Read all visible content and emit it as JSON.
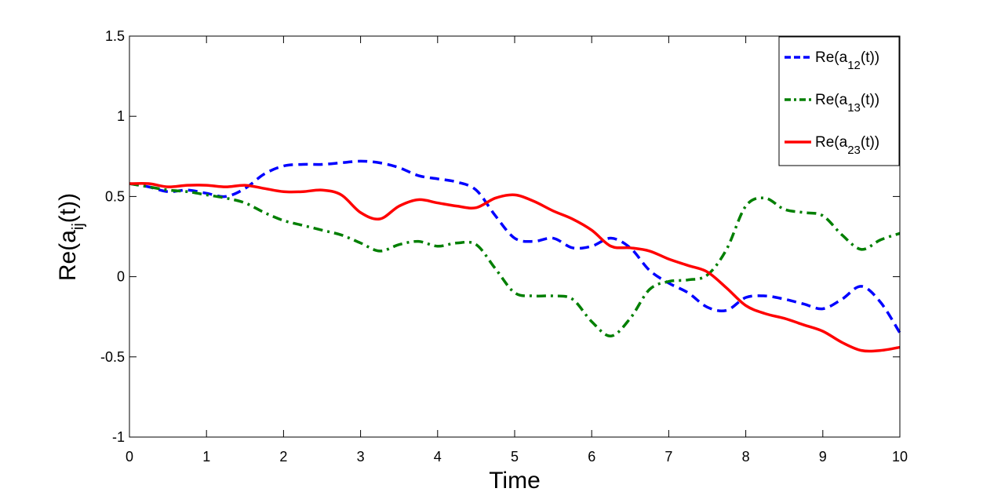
{
  "chart_data": {
    "type": "line",
    "xlabel": "Time",
    "ylabel": {
      "base": "Re(a",
      "sub": "ij",
      "tail": "(t))"
    },
    "xlim": [
      0,
      10
    ],
    "ylim": [
      -1,
      1.5
    ],
    "x_ticks": [
      "0",
      "1",
      "2",
      "3",
      "4",
      "5",
      "6",
      "7",
      "8",
      "9",
      "10"
    ],
    "y_ticks": [
      "-1",
      "-0.5",
      "0",
      "0.5",
      "1",
      "1.5"
    ],
    "grid": false,
    "legend_position": "top-right",
    "series": [
      {
        "name": "Re(a12(t))",
        "legend_base": "Re(a",
        "legend_sub": "12",
        "legend_tail": "(t))",
        "color": "#0000ff",
        "style": "dashed",
        "x": [
          0,
          0.25,
          0.5,
          0.75,
          1.0,
          1.25,
          1.5,
          1.75,
          2.0,
          2.25,
          2.5,
          2.75,
          3.0,
          3.25,
          3.5,
          3.75,
          4.0,
          4.25,
          4.5,
          4.75,
          5.0,
          5.25,
          5.5,
          5.75,
          6.0,
          6.25,
          6.5,
          6.75,
          7.0,
          7.25,
          7.5,
          7.75,
          8.0,
          8.25,
          8.5,
          8.75,
          9.0,
          9.25,
          9.5,
          9.75,
          10.0
        ],
        "y": [
          0.58,
          0.56,
          0.53,
          0.54,
          0.52,
          0.5,
          0.55,
          0.64,
          0.69,
          0.7,
          0.7,
          0.71,
          0.72,
          0.71,
          0.68,
          0.63,
          0.61,
          0.59,
          0.54,
          0.38,
          0.24,
          0.22,
          0.24,
          0.18,
          0.19,
          0.24,
          0.18,
          0.04,
          -0.04,
          -0.1,
          -0.19,
          -0.21,
          -0.13,
          -0.12,
          -0.14,
          -0.17,
          -0.2,
          -0.14,
          -0.06,
          -0.16,
          -0.35
        ]
      },
      {
        "name": "Re(a13(t))",
        "legend_base": "Re(a",
        "legend_sub": "13",
        "legend_tail": "(t))",
        "color": "#007f00",
        "style": "dashdot",
        "x": [
          0,
          0.25,
          0.5,
          0.75,
          1.0,
          1.25,
          1.5,
          1.75,
          2.0,
          2.25,
          2.5,
          2.75,
          3.0,
          3.25,
          3.5,
          3.75,
          4.0,
          4.25,
          4.5,
          4.75,
          5.0,
          5.25,
          5.5,
          5.75,
          6.0,
          6.25,
          6.5,
          6.75,
          7.0,
          7.25,
          7.5,
          7.75,
          8.0,
          8.25,
          8.5,
          8.75,
          9.0,
          9.25,
          9.5,
          9.75,
          10.0
        ],
        "y": [
          0.58,
          0.56,
          0.54,
          0.53,
          0.51,
          0.49,
          0.46,
          0.4,
          0.35,
          0.32,
          0.29,
          0.26,
          0.21,
          0.16,
          0.2,
          0.22,
          0.19,
          0.21,
          0.2,
          0.05,
          -0.1,
          -0.12,
          -0.12,
          -0.14,
          -0.28,
          -0.37,
          -0.26,
          -0.08,
          -0.03,
          -0.02,
          0.01,
          0.17,
          0.44,
          0.49,
          0.42,
          0.4,
          0.38,
          0.26,
          0.17,
          0.23,
          0.27
        ]
      },
      {
        "name": "Re(a23(t))",
        "legend_base": "Re(a",
        "legend_sub": "23",
        "legend_tail": "(t))",
        "color": "#ff0000",
        "style": "solid",
        "x": [
          0,
          0.25,
          0.5,
          0.75,
          1.0,
          1.25,
          1.5,
          1.75,
          2.0,
          2.25,
          2.5,
          2.75,
          3.0,
          3.25,
          3.5,
          3.75,
          4.0,
          4.25,
          4.5,
          4.75,
          5.0,
          5.25,
          5.5,
          5.75,
          6.0,
          6.25,
          6.5,
          6.75,
          7.0,
          7.25,
          7.5,
          7.75,
          8.0,
          8.25,
          8.5,
          8.75,
          9.0,
          9.25,
          9.5,
          9.75,
          10.0
        ],
        "y": [
          0.58,
          0.58,
          0.56,
          0.57,
          0.57,
          0.56,
          0.57,
          0.55,
          0.53,
          0.53,
          0.54,
          0.51,
          0.4,
          0.36,
          0.44,
          0.48,
          0.46,
          0.44,
          0.43,
          0.49,
          0.51,
          0.47,
          0.41,
          0.36,
          0.29,
          0.19,
          0.18,
          0.16,
          0.11,
          0.07,
          0.03,
          -0.07,
          -0.18,
          -0.23,
          -0.26,
          -0.3,
          -0.34,
          -0.41,
          -0.46,
          -0.46,
          -0.44
        ]
      }
    ]
  }
}
